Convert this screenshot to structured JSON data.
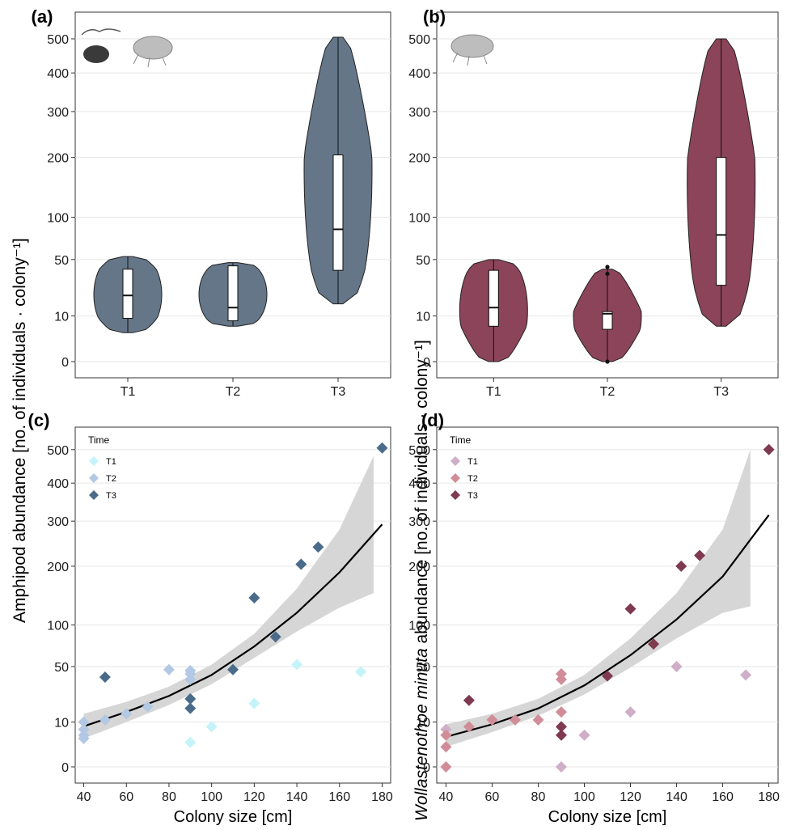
{
  "figure": {
    "ylabel_left": "Amphipod abundance [no. of individuals · colony⁻¹]",
    "ylabel_right_italic": "Wollastenothoe minuta",
    "ylabel_right_rest": " abundance [no. of individuals · colony⁻¹]"
  },
  "chart_data": [
    {
      "panel": "(a)",
      "type": "violin",
      "color": "#647688",
      "categories": [
        "T1",
        "T2",
        "T3"
      ],
      "y_scale": "sqrt",
      "y_ticks": [
        0,
        10,
        50,
        100,
        200,
        300,
        400,
        500
      ],
      "ylim": [
        0,
        500
      ],
      "grid": "horizontal",
      "icons": [
        "amphipod-silhouettes-icon",
        "amphipod-drawing-icon"
      ],
      "series": [
        {
          "category": "T1",
          "min": 4,
          "q1": 9,
          "median": 21,
          "q3": 41,
          "max": 53
        },
        {
          "category": "T2",
          "min": 6,
          "q1": 8,
          "median": 14,
          "q3": 44,
          "max": 47
        },
        {
          "category": "T3",
          "min": 16,
          "q1": 40,
          "median": 84,
          "q3": 205,
          "max": 505
        }
      ]
    },
    {
      "panel": "(b)",
      "type": "violin",
      "color": "#8b4459",
      "categories": [
        "T1",
        "T2",
        "T3"
      ],
      "y_scale": "sqrt",
      "y_ticks": [
        0,
        10,
        50,
        100,
        200,
        300,
        400,
        500
      ],
      "ylim": [
        0,
        500
      ],
      "grid": "horizontal",
      "icons": [
        "amphipod-drawing-icon"
      ],
      "series": [
        {
          "category": "T1",
          "min": 0,
          "q1": 6,
          "median": 14,
          "q3": 40,
          "max": 50
        },
        {
          "category": "T2",
          "min": 0,
          "q1": 5,
          "median": 11,
          "q3": 12,
          "max": 41,
          "outliers": [
            0,
            37,
            43
          ]
        },
        {
          "category": "T3",
          "min": 6,
          "q1": 28,
          "median": 77,
          "q3": 200,
          "max": 500
        }
      ]
    },
    {
      "panel": "(c)",
      "type": "scatter",
      "xlabel": "Colony size [cm]",
      "x_ticks": [
        40,
        60,
        80,
        100,
        120,
        140,
        160,
        180
      ],
      "xlim": [
        36,
        184
      ],
      "y_scale": "sqrt",
      "y_ticks": [
        0,
        10,
        50,
        100,
        200,
        300,
        400,
        500
      ],
      "ylim": [
        0,
        520
      ],
      "legend_title": "Time",
      "legend_position": "top-left",
      "series": [
        {
          "name": "T1",
          "color": "#c4f4fa",
          "points": [
            [
              90,
              3
            ],
            [
              100,
              8
            ],
            [
              120,
              20
            ],
            [
              140,
              52
            ],
            [
              170,
              45
            ]
          ]
        },
        {
          "name": "T2",
          "color": "#b2c8e4",
          "points": [
            [
              40,
              4
            ],
            [
              40,
              5
            ],
            [
              40,
              7
            ],
            [
              40,
              10
            ],
            [
              50,
              11
            ],
            [
              60,
              14
            ],
            [
              70,
              18
            ],
            [
              80,
              47
            ],
            [
              90,
              38
            ],
            [
              90,
              43
            ],
            [
              90,
              46
            ]
          ]
        },
        {
          "name": "T3",
          "color": "#4a6b8a",
          "points": [
            [
              50,
              40
            ],
            [
              90,
              17
            ],
            [
              90,
              23
            ],
            [
              110,
              47
            ],
            [
              120,
              142
            ],
            [
              130,
              84
            ],
            [
              142,
              204
            ],
            [
              150,
              240
            ],
            [
              180,
              505
            ]
          ]
        }
      ],
      "fit_line": [
        [
          40,
          8.2
        ],
        [
          60,
          15
        ],
        [
          80,
          25
        ],
        [
          100,
          42
        ],
        [
          120,
          72
        ],
        [
          140,
          118
        ],
        [
          160,
          188
        ],
        [
          180,
          292
        ]
      ],
      "ci_lower": [
        [
          40,
          4
        ],
        [
          60,
          10
        ],
        [
          80,
          19
        ],
        [
          100,
          34
        ],
        [
          120,
          59
        ],
        [
          140,
          91
        ],
        [
          160,
          126
        ],
        [
          176,
          150
        ]
      ],
      "ci_upper": [
        [
          40,
          14
        ],
        [
          60,
          21
        ],
        [
          80,
          32
        ],
        [
          100,
          52
        ],
        [
          120,
          88
        ],
        [
          140,
          158
        ],
        [
          160,
          280
        ],
        [
          176,
          480
        ]
      ]
    },
    {
      "panel": "(d)",
      "type": "scatter",
      "xlabel": "Colony size [cm]",
      "x_ticks": [
        40,
        60,
        80,
        100,
        120,
        140,
        160,
        180
      ],
      "xlim": [
        36,
        184
      ],
      "y_scale": "sqrt",
      "y_ticks": [
        0,
        10,
        50,
        100,
        200,
        300,
        400,
        500
      ],
      "ylim": [
        0,
        520
      ],
      "legend_title": "Time",
      "legend_position": "top-left",
      "series": [
        {
          "name": "T1",
          "color": "#cfaec8",
          "points": [
            [
              40,
              7
            ],
            [
              90,
              0
            ],
            [
              100,
              5
            ],
            [
              120,
              15
            ],
            [
              140,
              50
            ],
            [
              170,
              42
            ]
          ]
        },
        {
          "name": "T2",
          "color": "#d08d98",
          "points": [
            [
              40,
              0
            ],
            [
              40,
              2
            ],
            [
              40,
              5
            ],
            [
              50,
              8
            ],
            [
              60,
              11
            ],
            [
              70,
              11
            ],
            [
              80,
              11
            ],
            [
              90,
              15
            ],
            [
              90,
              38
            ],
            [
              90,
              43
            ]
          ]
        },
        {
          "name": "T3",
          "color": "#7f3a50",
          "points": [
            [
              50,
              22
            ],
            [
              90,
              5
            ],
            [
              90,
              8
            ],
            [
              110,
              41
            ],
            [
              120,
              124
            ],
            [
              130,
              75
            ],
            [
              142,
              200
            ],
            [
              150,
              222
            ],
            [
              180,
              500
            ]
          ]
        }
      ],
      "fit_line": [
        [
          40,
          4.5
        ],
        [
          60,
          9
        ],
        [
          80,
          17
        ],
        [
          100,
          33
        ],
        [
          120,
          62
        ],
        [
          140,
          108
        ],
        [
          160,
          180
        ],
        [
          180,
          315
        ]
      ],
      "ci_lower": [
        [
          40,
          2
        ],
        [
          60,
          6
        ],
        [
          80,
          13
        ],
        [
          100,
          26
        ],
        [
          120,
          49
        ],
        [
          140,
          82
        ],
        [
          160,
          118
        ],
        [
          172,
          128
        ]
      ],
      "ci_upper": [
        [
          40,
          9
        ],
        [
          60,
          14
        ],
        [
          80,
          23
        ],
        [
          100,
          42
        ],
        [
          120,
          82
        ],
        [
          140,
          150
        ],
        [
          160,
          280
        ],
        [
          172,
          500
        ]
      ]
    }
  ]
}
